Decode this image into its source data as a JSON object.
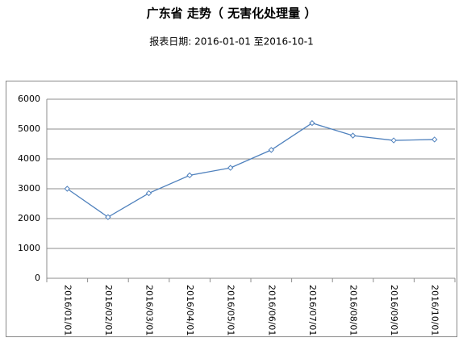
{
  "chart_data": {
    "type": "line",
    "title": "广东省  走势（  无害化处理量  ）",
    "subtitle": "报表日期: 2016-01-01 至2016-10-1",
    "categories": [
      "2016/01/01",
      "2016/02/01",
      "2016/03/01",
      "2016/04/01",
      "2016/05/01",
      "2016/06/01",
      "2016/07/01",
      "2016/08/01",
      "2016/09/01",
      "2016/10/01"
    ],
    "values": [
      3000,
      2050,
      2850,
      3450,
      3700,
      4300,
      5200,
      4780,
      4620,
      4650
    ],
    "color": "#4f81bd",
    "ylim": [
      0,
      6000
    ],
    "yticks": [
      0,
      1000,
      2000,
      3000,
      4000,
      5000,
      6000
    ],
    "grid": true
  }
}
